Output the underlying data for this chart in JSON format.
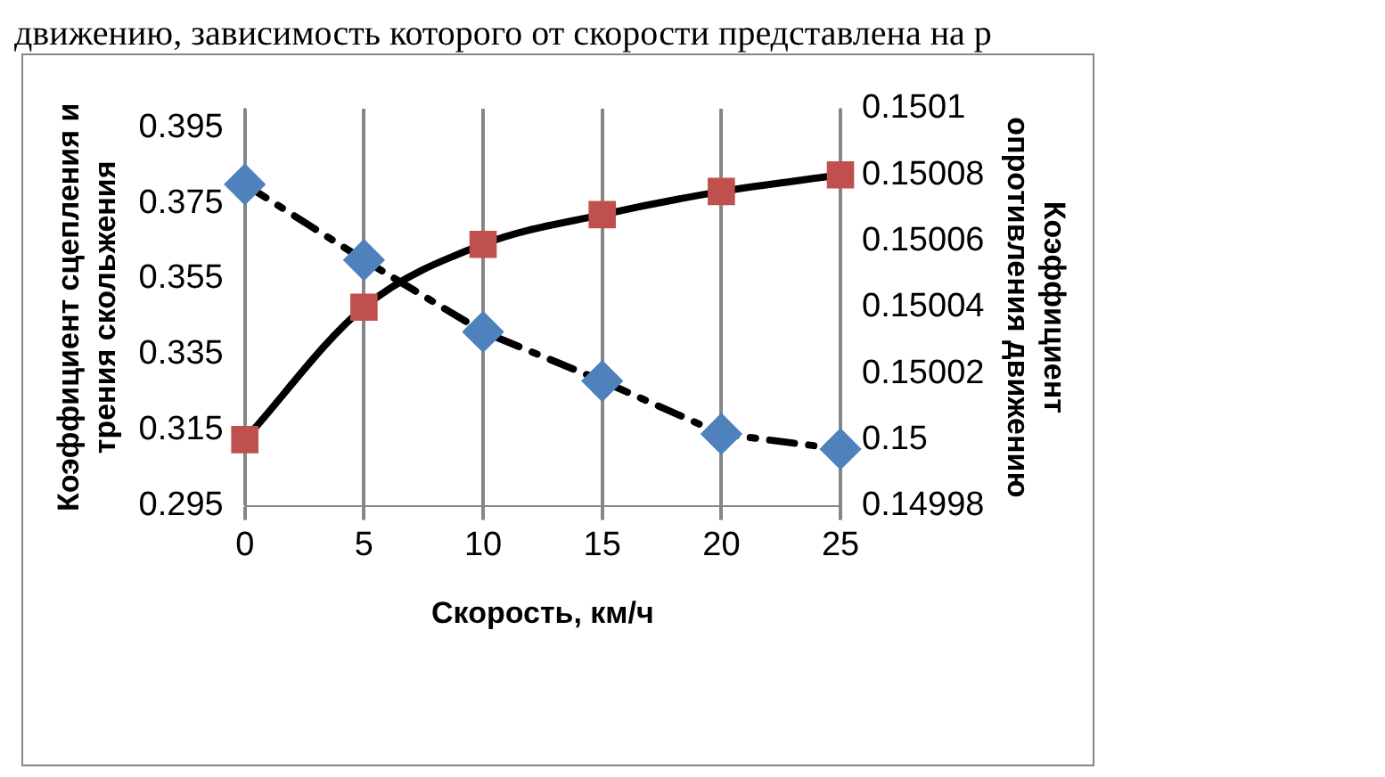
{
  "chart_data": {
    "type": "line",
    "annotations": [
      "движению, зависимость которого от скорости представлена на р"
    ],
    "xlabel": "Скорость, км/ч",
    "ylabel": "Коэффициент сцепления и\nтрения скольжения",
    "y2label": "Коэффициент\nопротивления движению",
    "categories": [
      "0",
      "5",
      "10",
      "15",
      "20",
      "25"
    ],
    "series": [
      {
        "color": "#4f81bd",
        "marker": "diamond",
        "line_style": "dashed",
        "values": [
          0.38,
          0.36,
          0.341,
          0.328,
          0.314,
          0.31
        ]
      },
      {
        "color": "#c0504d",
        "marker": "square",
        "line_style": "solid",
        "axis": "y2",
        "values": [
          0.15,
          0.15004,
          0.150059,
          0.150068,
          0.150075,
          0.15008
        ]
      }
    ],
    "ylim": [
      0.295,
      0.4
    ],
    "yticks": [
      0.295,
      0.315,
      0.335,
      0.355,
      0.375,
      0.395
    ],
    "y2lim": [
      0.14998,
      0.1501
    ],
    "y2ticks": [
      0.14998,
      0.15,
      0.15002,
      0.15004,
      0.15006,
      0.15008,
      0.1501
    ],
    "grid": "x",
    "legend": false
  }
}
